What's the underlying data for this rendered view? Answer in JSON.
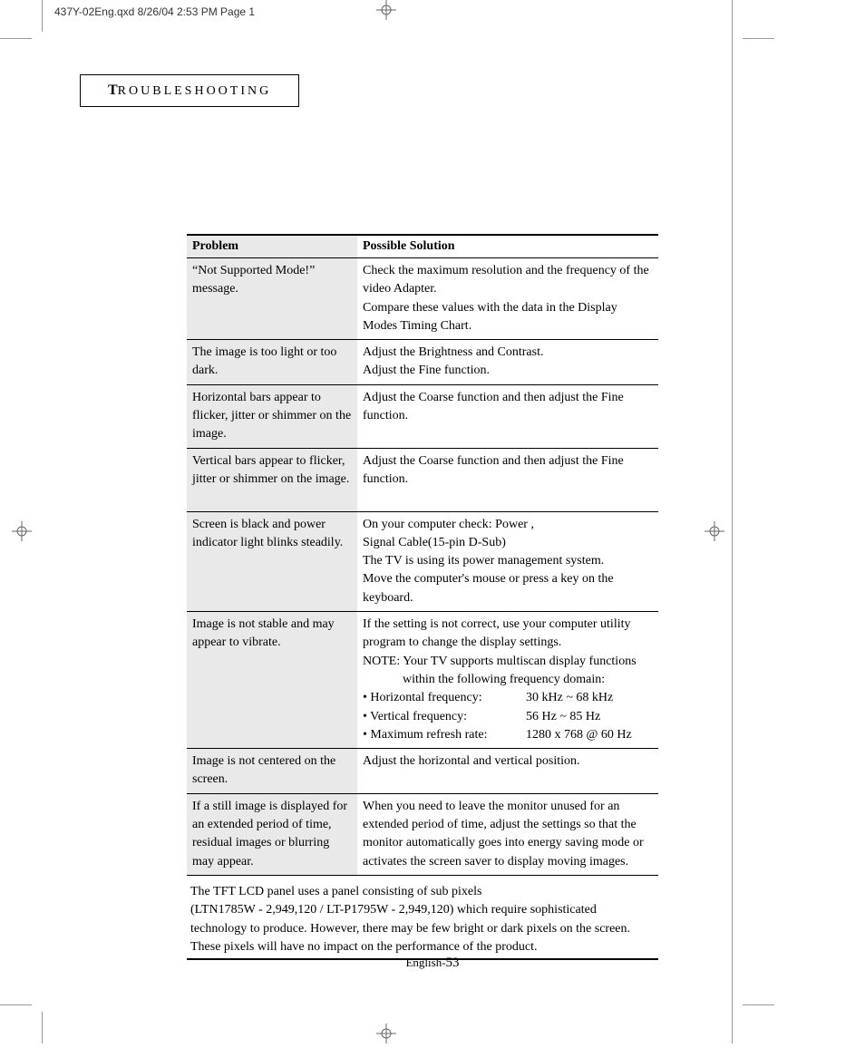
{
  "print_header": "437Y-02Eng.qxd   8/26/04  2:53 PM   Page 1",
  "section_title_first": "T",
  "section_title_rest": "ROUBLESHOOTING",
  "table": {
    "headers": [
      "Problem",
      "Possible Solution"
    ],
    "rows": [
      {
        "problem": "“Not Supported Mode!” message.",
        "solution": "Check the maximum resolution and the frequency of the video Adapter.\nCompare these values with the data in the Display Modes Timing Chart."
      },
      {
        "problem": "The image is too light or too dark.",
        "solution": "Adjust the Brightness and Contrast.\nAdjust the Fine function."
      },
      {
        "problem": "Horizontal bars appear to flicker, jitter or shimmer on the image.",
        "solution": "Adjust the Coarse function and then adjust the Fine function."
      },
      {
        "problem": "Vertical bars appear to flicker, jitter or shimmer on the image.",
        "solution": "Adjust the Coarse function and then adjust the Fine function."
      },
      {
        "problem": "Screen is black and power indicator light blinks steadily.",
        "solution": "On your computer check: Power ,\nSignal Cable(15-pin D-Sub)\nThe TV is using its power management system.\nMove the computer's mouse or press a key on the keyboard."
      },
      {
        "problem": "Image is not stable and may appear to vibrate.",
        "solution_intro": "If the setting is not correct, use your computer utility program to change the display settings.",
        "solution_note": "NOTE: Your TV supports multiscan display functions",
        "solution_note_indent": "within the following frequency domain:",
        "freq_items": [
          {
            "label": "• Horizontal frequency:",
            "value": "30 kHz ~ 68 kHz"
          },
          {
            "label": "• Vertical frequency:",
            "value": "56 Hz ~ 85 Hz"
          },
          {
            "label": "• Maximum refresh rate:",
            "value": "1280 x 768 @ 60 Hz"
          }
        ]
      },
      {
        "problem": "Image is not centered on the screen.",
        "solution": "Adjust the horizontal and vertical position."
      },
      {
        "problem": "If a still image is displayed for an extended period of time, residual images or blurring may appear.",
        "solution": "When you need to leave the monitor unused for an extended period of time, adjust the settings so that the monitor automatically goes into energy saving mode or activates the screen saver to display moving images."
      }
    ]
  },
  "footnote": "The TFT LCD panel uses a panel consisting of sub pixels\n(LTN1785W - 2,949,120 / LT-P1795W - 2,949,120) which require sophisticated technology to produce. However, there may be few bright or dark pixels on the screen. These pixels will have no impact on the performance of the product.",
  "page_number_prefix": "English-",
  "page_number": "53",
  "colors": {
    "background": "#ffffff",
    "text": "#000000",
    "header_bg": "#e9e9e9",
    "cropmark": "#999999"
  }
}
